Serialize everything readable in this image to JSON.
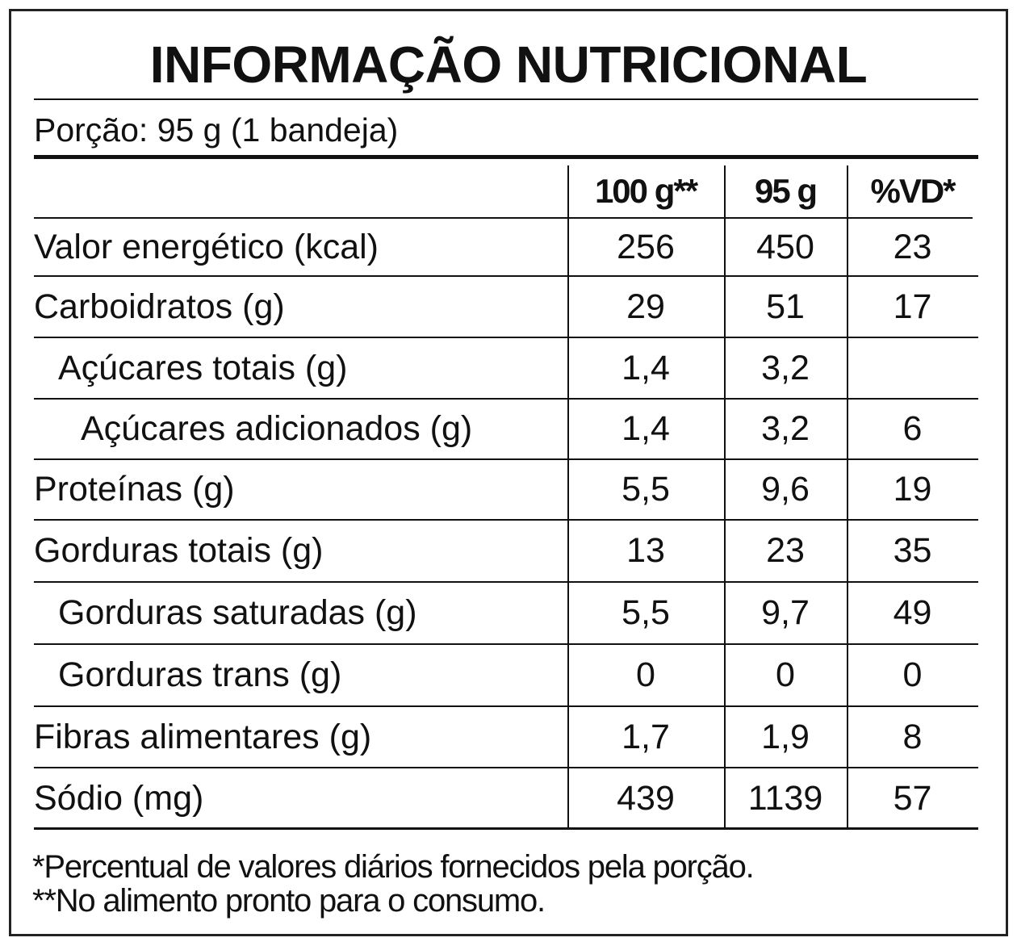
{
  "header": {
    "title": "INFORMAÇÃO NUTRICIONAL",
    "serving": "Porção: 95 g (1 bandeja)"
  },
  "table": {
    "columns": [
      "100 g**",
      "95 g",
      "%VD*"
    ],
    "rows": [
      [
        "Valor energético (kcal)",
        "256",
        "450",
        "23"
      ],
      [
        "Carboidratos (g)",
        "29",
        "51",
        "17"
      ],
      [
        "Açúcares totais (g)",
        "1,4",
        "3,2",
        null
      ],
      [
        "Açúcares adicionados (g)",
        "1,4",
        "3,2",
        "6"
      ],
      [
        "Proteínas (g)",
        "5,5",
        "9,6",
        "19"
      ],
      [
        "Gorduras totais (g)",
        "13",
        "23",
        "35"
      ],
      [
        "Gorduras saturadas (g)",
        "5,5",
        "9,7",
        "49"
      ],
      [
        "Gorduras trans (g)",
        "0",
        "0",
        "0"
      ],
      [
        "Fibras alimentares (g)",
        "1,7",
        "1,9",
        "8"
      ],
      [
        "Sódio (mg)",
        "439",
        "1139",
        "57"
      ]
    ]
  },
  "footnotes": [
    "*Percentual de valores diários fornecidos pela porção.",
    "**No alimento pronto para o consumo."
  ]
}
